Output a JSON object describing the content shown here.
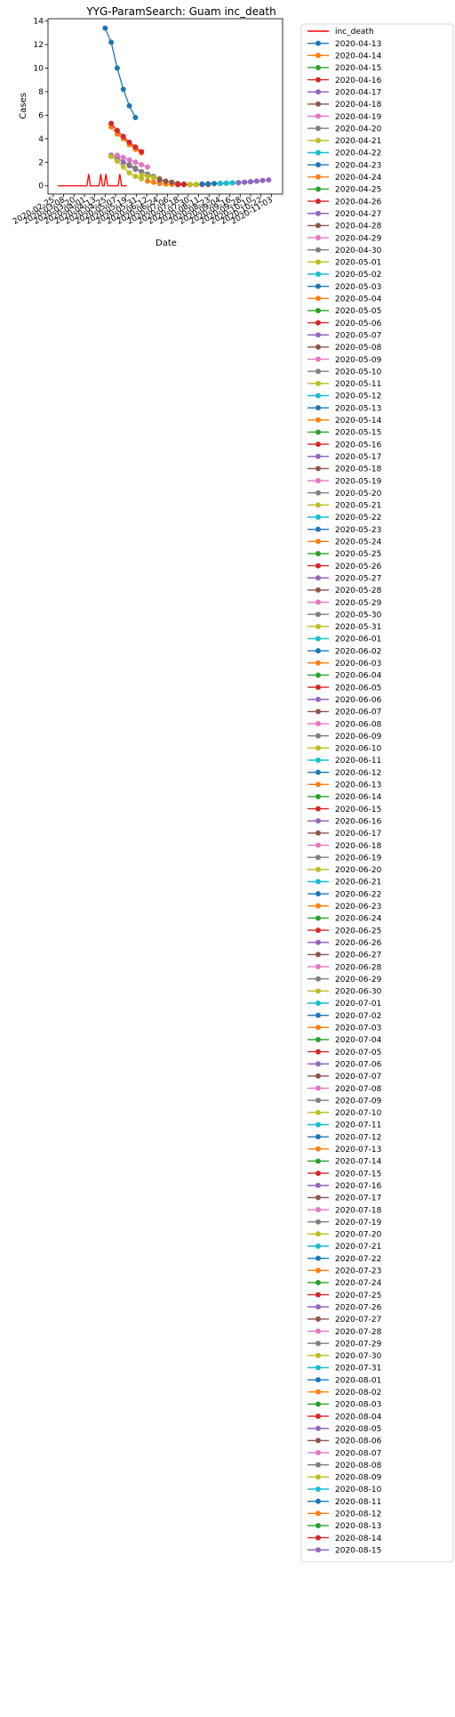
{
  "chart_data": {
    "type": "line",
    "title": "YYG-ParamSearch: Guam inc_death",
    "xlabel": "Date",
    "ylabel": "Cases",
    "ylim": [
      -0.7,
      14.2
    ],
    "yticks": [
      0,
      2,
      4,
      6,
      8,
      10,
      12,
      14
    ],
    "xlim": [
      "2020-02-19",
      "2020-11-16"
    ],
    "xticks": [
      "2020-02-25",
      "2020-03-08",
      "2020-03-20",
      "2020-04-01",
      "2020-04-13",
      "2020-04-25",
      "2020-05-07",
      "2020-05-19",
      "2020-05-31",
      "2020-06-12",
      "2020-06-24",
      "2020-07-06",
      "2020-07-18",
      "2020-07-30",
      "2020-08-11",
      "2020-08-23",
      "2020-09-04",
      "2020-09-16",
      "2020-09-28",
      "2020-10-10",
      "2020-10-22",
      "2020-11-03"
    ],
    "grid": false,
    "legend_position": "outside-right",
    "colors": [
      "#1f77b4",
      "#ff7f0e",
      "#2ca02c",
      "#d62728",
      "#9467bd",
      "#8c564b",
      "#e377c2",
      "#7f7f7f",
      "#bcbd22",
      "#17becf"
    ],
    "observed": {
      "name": "inc_death",
      "color": "#ff0000",
      "x": [
        "2020-03-01",
        "2020-04-04",
        "2020-04-06",
        "2020-04-08",
        "2020-04-18",
        "2020-04-20",
        "2020-04-22",
        "2020-04-24",
        "2020-04-26",
        "2020-04-28",
        "2020-05-10",
        "2020-05-12",
        "2020-05-14",
        "2020-05-20"
      ],
      "y": [
        0,
        0,
        1,
        0,
        0,
        1,
        0,
        0,
        1,
        0,
        0,
        1,
        0,
        0
      ]
    },
    "forecast_dates": [
      "2020-04-13",
      "2020-04-14",
      "2020-04-15",
      "2020-04-16",
      "2020-04-17",
      "2020-04-18",
      "2020-04-19",
      "2020-04-20",
      "2020-04-21",
      "2020-04-22",
      "2020-04-23",
      "2020-04-24",
      "2020-04-25",
      "2020-04-26",
      "2020-04-27",
      "2020-04-28",
      "2020-04-29",
      "2020-04-30",
      "2020-05-01",
      "2020-05-02",
      "2020-05-03",
      "2020-05-04",
      "2020-05-05",
      "2020-05-06",
      "2020-05-07",
      "2020-05-08",
      "2020-05-09",
      "2020-05-10",
      "2020-05-11",
      "2020-05-12",
      "2020-05-13",
      "2020-05-14",
      "2020-05-15",
      "2020-05-16",
      "2020-05-17",
      "2020-05-18",
      "2020-05-19",
      "2020-05-20",
      "2020-05-21",
      "2020-05-22",
      "2020-05-23",
      "2020-05-24",
      "2020-05-25",
      "2020-05-26",
      "2020-05-27",
      "2020-05-28",
      "2020-05-29",
      "2020-05-30",
      "2020-05-31",
      "2020-06-01",
      "2020-06-02",
      "2020-06-03",
      "2020-06-04",
      "2020-06-05",
      "2020-06-06",
      "2020-06-07",
      "2020-06-08",
      "2020-06-09",
      "2020-06-10",
      "2020-06-11",
      "2020-06-12",
      "2020-06-13",
      "2020-06-14",
      "2020-06-15",
      "2020-06-16",
      "2020-06-17",
      "2020-06-18",
      "2020-06-19",
      "2020-06-20",
      "2020-06-21",
      "2020-06-22",
      "2020-06-23",
      "2020-06-24",
      "2020-06-25",
      "2020-06-26",
      "2020-06-27",
      "2020-06-28",
      "2020-06-29",
      "2020-06-30",
      "2020-07-01",
      "2020-07-02",
      "2020-07-03",
      "2020-07-04",
      "2020-07-05",
      "2020-07-06",
      "2020-07-07",
      "2020-07-08",
      "2020-07-09",
      "2020-07-10",
      "2020-07-11",
      "2020-07-12",
      "2020-07-13",
      "2020-07-14",
      "2020-07-15",
      "2020-07-16",
      "2020-07-17",
      "2020-07-18",
      "2020-07-19",
      "2020-07-20",
      "2020-07-21",
      "2020-07-22",
      "2020-07-23",
      "2020-07-24",
      "2020-07-25",
      "2020-07-26",
      "2020-07-27",
      "2020-07-28",
      "2020-07-29",
      "2020-07-30",
      "2020-07-31",
      "2020-08-01",
      "2020-08-02",
      "2020-08-03",
      "2020-08-04",
      "2020-08-05",
      "2020-08-06",
      "2020-08-07",
      "2020-08-08",
      "2020-08-09",
      "2020-08-10",
      "2020-08-11",
      "2020-08-12",
      "2020-08-13",
      "2020-08-14",
      "2020-08-15"
    ],
    "forecast_series_shown": [
      {
        "name": "2020-04-13",
        "x": [
          "2020-04-25",
          "2020-05-02",
          "2020-05-09",
          "2020-05-16",
          "2020-05-23",
          "2020-05-30"
        ],
        "y": [
          13.4,
          12.2,
          10.0,
          8.2,
          6.8,
          5.8
        ]
      },
      {
        "name": "2020-04-14",
        "x": [
          "2020-05-02",
          "2020-05-09",
          "2020-05-16",
          "2020-05-23",
          "2020-05-30",
          "2020-06-06"
        ],
        "y": [
          5.0,
          4.4,
          4.0,
          3.5,
          3.1,
          2.8
        ]
      },
      {
        "name": "2020-04-16",
        "x": [
          "2020-05-02",
          "2020-05-09",
          "2020-05-16",
          "2020-05-23",
          "2020-05-30",
          "2020-06-06"
        ],
        "y": [
          5.3,
          4.7,
          4.2,
          3.7,
          3.3,
          2.9
        ]
      },
      {
        "name": "2020-04-17",
        "x": [
          "2020-05-02",
          "2020-05-09",
          "2020-05-16",
          "2020-05-23",
          "2020-05-30",
          "2020-06-06"
        ],
        "y": [
          2.6,
          2.4,
          2.0,
          1.7,
          1.4,
          1.2
        ]
      },
      {
        "name": "2020-04-21",
        "x": [
          "2020-05-02",
          "2020-05-09",
          "2020-05-16",
          "2020-05-23",
          "2020-05-30",
          "2020-06-06"
        ],
        "y": [
          2.5,
          2.1,
          1.6,
          1.1,
          0.8,
          0.6
        ]
      },
      {
        "name": "2020-04-29",
        "x": [
          "2020-05-09",
          "2020-05-16",
          "2020-05-23",
          "2020-05-30",
          "2020-06-06",
          "2020-06-13"
        ],
        "y": [
          2.6,
          2.4,
          2.2,
          2.0,
          1.8,
          1.6
        ]
      },
      {
        "name": "2020-05-10",
        "x": [
          "2020-05-23",
          "2020-05-30",
          "2020-06-06",
          "2020-06-13",
          "2020-06-20",
          "2020-06-27"
        ],
        "y": [
          1.8,
          1.5,
          1.2,
          1.0,
          0.8,
          0.6
        ]
      },
      {
        "name": "2020-05-21",
        "x": [
          "2020-06-06",
          "2020-06-13",
          "2020-06-20",
          "2020-06-27",
          "2020-07-04",
          "2020-07-11"
        ],
        "y": [
          0.9,
          0.8,
          0.7,
          0.5,
          0.4,
          0.3
        ]
      },
      {
        "name": "2020-06-03",
        "x": [
          "2020-06-13",
          "2020-06-20",
          "2020-06-27",
          "2020-07-04",
          "2020-07-11",
          "2020-07-18"
        ],
        "y": [
          0.4,
          0.3,
          0.2,
          0.15,
          0.12,
          0.1
        ]
      },
      {
        "name": "2020-06-17",
        "x": [
          "2020-06-27",
          "2020-07-04",
          "2020-07-11",
          "2020-07-18",
          "2020-07-25",
          "2020-08-01"
        ],
        "y": [
          0.5,
          0.4,
          0.3,
          0.2,
          0.15,
          0.1
        ]
      },
      {
        "name": "2020-07-05",
        "x": [
          "2020-07-18",
          "2020-07-25",
          "2020-08-01",
          "2020-08-08",
          "2020-08-15",
          "2020-08-22"
        ],
        "y": [
          0.1,
          0.1,
          0.1,
          0.1,
          0.1,
          0.1
        ]
      },
      {
        "name": "2020-07-20",
        "x": [
          "2020-08-01",
          "2020-08-08",
          "2020-08-15",
          "2020-08-22",
          "2020-08-29",
          "2020-09-05"
        ],
        "y": [
          0.1,
          0.12,
          0.14,
          0.16,
          0.18,
          0.2
        ]
      },
      {
        "name": "2020-08-01",
        "x": [
          "2020-08-15",
          "2020-08-22",
          "2020-08-29",
          "2020-09-05",
          "2020-09-12",
          "2020-09-19"
        ],
        "y": [
          0.15,
          0.17,
          0.19,
          0.21,
          0.23,
          0.25
        ]
      },
      {
        "name": "2020-08-10",
        "x": [
          "2020-09-05",
          "2020-09-12",
          "2020-09-19",
          "2020-09-26",
          "2020-10-03",
          "2020-10-10"
        ],
        "y": [
          0.2,
          0.22,
          0.25,
          0.28,
          0.31,
          0.34
        ]
      },
      {
        "name": "2020-08-15",
        "x": [
          "2020-09-26",
          "2020-10-03",
          "2020-10-10",
          "2020-10-17",
          "2020-10-24",
          "2020-10-31"
        ],
        "y": [
          0.25,
          0.3,
          0.35,
          0.4,
          0.45,
          0.5
        ]
      }
    ]
  }
}
